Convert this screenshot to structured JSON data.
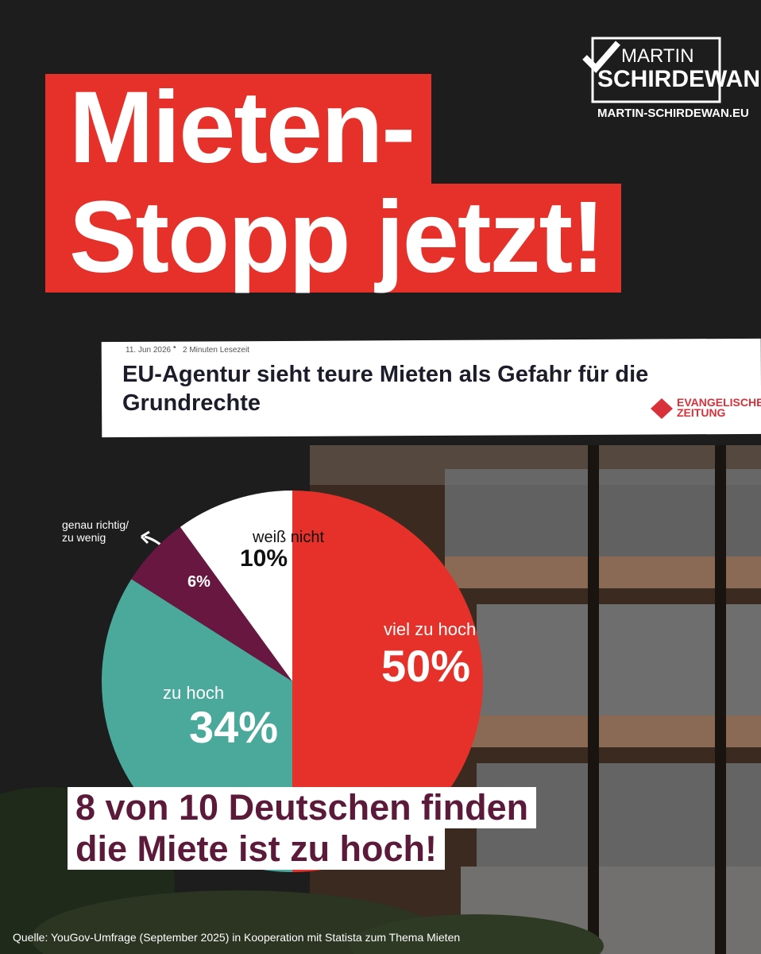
{
  "header": {
    "title": [
      "Mieten-",
      "Stopp jetzt!"
    ]
  },
  "logo": {
    "name_first": "MARTIN",
    "name_last": "SCHIRDEWAN",
    "url": "MARTIN-SCHIRDEWAN.EU"
  },
  "article": {
    "date": "11. Jun 2026",
    "reading_time": "2 Minuten Lesezeit",
    "headline": "EU-Agentur sieht teure Mieten als Gefahr für die Grundrechte",
    "source_logo": [
      "EVANGELISCHE",
      "ZEITUNG"
    ]
  },
  "chart_data": {
    "type": "pie",
    "categories": [
      "viel zu hoch",
      "zu hoch",
      "genau richtig/\nzu wenig",
      "weiß nicht"
    ],
    "values": [
      50,
      34,
      6,
      10
    ],
    "value_labels": [
      "50%",
      "34%",
      "6%",
      "10%"
    ],
    "colors": [
      "#e5312a",
      "#4aa99a",
      "#681741",
      "#ffffff"
    ]
  },
  "callout": [
    "8 von 10 Deutschen finden",
    "die Miete ist zu hoch!"
  ],
  "footer": {
    "source": "Quelle: YouGov-Umfrage (September 2025) in Kooperation mit Statista zum Thema Mieten"
  }
}
